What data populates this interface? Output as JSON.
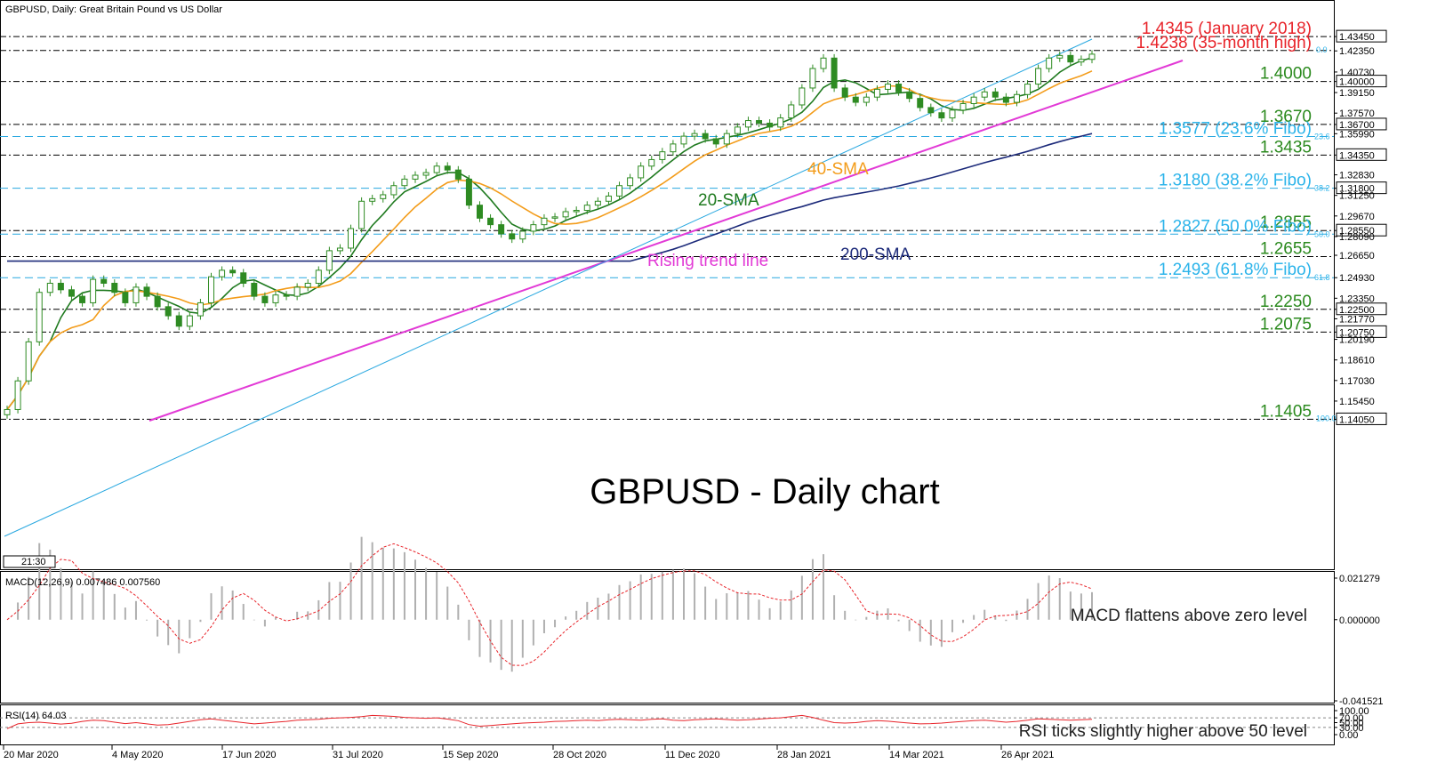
{
  "header": {
    "symbol_title": "GBPUSD, Daily:  Great Britain Pound vs US Dollar",
    "time_box": "21:30"
  },
  "main_title": "GBPUSD - Daily chart",
  "colors": {
    "candle": "#2e8b22",
    "sma20": "#1f7a1f",
    "sma40": "#f39c1a",
    "sma200": "#1c2a7a",
    "trend": "#e23ad6",
    "fibo_line": "#29a8e0",
    "fibo_text": "#2cb4ea",
    "level_text": "#2b8a1e",
    "high_text": "#e8242a",
    "macd_hist": "#b0b0b0",
    "macd_signal": "#e8242a",
    "rsi": "#e8242a"
  },
  "chart_data": {
    "type": "candlestick",
    "title": "GBPUSD - Daily chart",
    "x_dates": [
      "20 Mar 2020",
      "4 May 2020",
      "17 Jun 2020",
      "31 Jul 2020",
      "15 Sep 2020",
      "28 Oct 2020",
      "11 Dec 2020",
      "28 Jan 2021",
      "14 Mar 2021",
      "26 Apr 2021"
    ],
    "ylim": [
      1.1405,
      1.4345
    ],
    "y_ticks": [
      "1.43450",
      "1.42350",
      "1.40730",
      "1.40000",
      "1.39150",
      "1.37570",
      "1.36700",
      "1.35990",
      "1.34350",
      "1.32830",
      "1.31800",
      "1.31250",
      "1.29670",
      "1.28550",
      "1.28090",
      "1.26650",
      "1.24930",
      "1.23350",
      "1.22500",
      "1.21770",
      "1.20750",
      "1.20190",
      "1.18610",
      "1.17030",
      "1.15450",
      "1.14050"
    ],
    "price_close": [
      1.148,
      1.17,
      1.2,
      1.238,
      1.245,
      1.24,
      1.235,
      1.23,
      1.248,
      1.245,
      1.238,
      1.23,
      1.242,
      1.235,
      1.227,
      1.22,
      1.212,
      1.22,
      1.23,
      1.25,
      1.255,
      1.253,
      1.245,
      1.235,
      1.23,
      1.236,
      1.235,
      1.242,
      1.245,
      1.255,
      1.27,
      1.272,
      1.287,
      1.308,
      1.31,
      1.313,
      1.32,
      1.325,
      1.328,
      1.33,
      1.335,
      1.332,
      1.325,
      1.305,
      1.295,
      1.29,
      1.283,
      1.279,
      1.285,
      1.29,
      1.295,
      1.296,
      1.3,
      1.301,
      1.305,
      1.308,
      1.312,
      1.32,
      1.326,
      1.335,
      1.34,
      1.346,
      1.352,
      1.358,
      1.36,
      1.356,
      1.352,
      1.36,
      1.365,
      1.37,
      1.368,
      1.365,
      1.372,
      1.382,
      1.395,
      1.41,
      1.418,
      1.395,
      1.388,
      1.384,
      1.388,
      1.394,
      1.398,
      1.392,
      1.387,
      1.38,
      1.376,
      1.372,
      1.378,
      1.383,
      1.388,
      1.392,
      1.388,
      1.384,
      1.39,
      1.398,
      1.41,
      1.418,
      1.42,
      1.415,
      1.417,
      1.421
    ],
    "levels_dashed": [
      {
        "label": "1.4345 (January 2018)",
        "value": 1.4345
      },
      {
        "label": "1.4238 (35-month high)",
        "value": 1.4238
      },
      {
        "label": "1.4000",
        "value": 1.4
      },
      {
        "label": "1.3670",
        "value": 1.367
      },
      {
        "label": "1.3435",
        "value": 1.3435
      },
      {
        "label": "1.2855",
        "value": 1.2855
      },
      {
        "label": "1.2655",
        "value": 1.2655
      },
      {
        "label": "1.2250",
        "value": 1.225
      },
      {
        "label": "1.2075",
        "value": 1.2075
      },
      {
        "label": "1.1405",
        "value": 1.1405
      }
    ],
    "fibo_levels": [
      {
        "label": "1.3577 (23.6% Fibo)",
        "pct": "23.6",
        "value": 1.3577
      },
      {
        "label": "1.3180 (38.2% Fibo)",
        "pct": "38.2",
        "value": 1.318
      },
      {
        "label": "1.2827 (50.0% Fibo)",
        "pct": "50.0",
        "value": 1.2827
      },
      {
        "label": "1.2493 (61.8% Fibo)",
        "pct": "61.8",
        "value": 1.2493
      }
    ],
    "fibo_end_labels": {
      "top": "0.0",
      "bottom": "100.0"
    },
    "annotations": {
      "sma20": "20-SMA",
      "sma40": "40-SMA",
      "sma200": "200-SMA",
      "trend": "Rising trend line"
    },
    "macd": {
      "label": "MACD(12,26,9) 0.007486 0.007560",
      "ticks": [
        "0.021279",
        "0.000000",
        "-0.041521"
      ],
      "range": [
        -0.041521,
        0.021279
      ],
      "note": "MACD flattens above zero level"
    },
    "rsi": {
      "label": "RSI(14) 64.03",
      "ticks": [
        "100.00",
        "70.00",
        "50.00",
        "30.00",
        "0.00"
      ],
      "range": [
        0,
        100
      ],
      "note": "RSI ticks slightly higher above 50 level",
      "values": [
        25,
        45,
        50,
        52,
        48,
        44,
        47,
        55,
        60,
        58,
        52,
        46,
        50,
        45,
        40,
        42,
        48,
        55,
        62,
        66,
        60,
        55,
        50,
        45,
        48,
        52,
        55,
        60,
        62,
        64,
        68,
        70,
        72,
        75,
        80,
        78,
        76,
        72,
        70,
        68,
        70,
        65,
        58,
        42,
        35,
        38,
        42,
        45,
        48,
        50,
        52,
        55,
        56,
        58,
        60,
        58,
        62,
        64,
        62,
        60,
        64,
        66,
        60,
        58,
        62,
        64,
        66,
        63,
        60,
        62,
        65,
        68,
        70,
        75,
        80,
        72,
        60,
        50,
        48,
        50,
        55,
        58,
        56,
        52,
        48,
        45,
        46,
        48,
        52,
        55,
        58,
        60,
        56,
        52,
        55,
        60,
        66,
        64,
        62,
        60,
        62,
        64
      ]
    }
  }
}
